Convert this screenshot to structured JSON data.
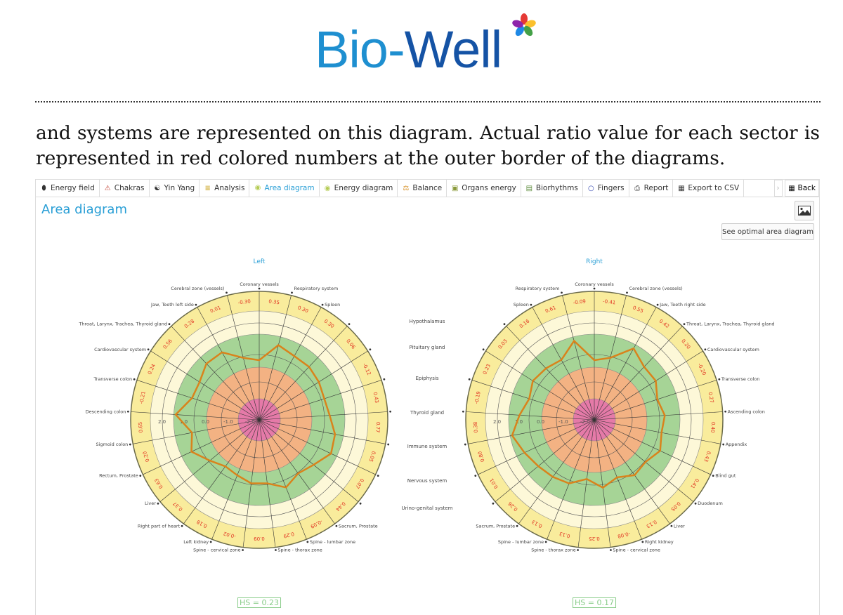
{
  "logo": {
    "text_a": "Bio-",
    "text_b": "Well"
  },
  "paragraph": {
    "line1": "and systems are represented on this diagram. Actual ratio value for each sector is",
    "line2": "represented in red colored numbers at the outer border of the diagrams."
  },
  "tabs": [
    {
      "label": "Energy field",
      "icon": "capsule-icon"
    },
    {
      "label": "Chakras",
      "icon": "triangle-icon"
    },
    {
      "label": "Yin Yang",
      "icon": "yin-yang-icon"
    },
    {
      "label": "Analysis",
      "icon": "bars-icon"
    },
    {
      "label": "Area diagram",
      "icon": "area-dot-icon",
      "active": true
    },
    {
      "label": "Energy diagram",
      "icon": "energy-dot-icon"
    },
    {
      "label": "Balance",
      "icon": "scales-icon"
    },
    {
      "label": "Organs energy",
      "icon": "organs-icon"
    },
    {
      "label": "Biorhythms",
      "icon": "chart-icon"
    },
    {
      "label": "Fingers",
      "icon": "circle-icon"
    },
    {
      "label": "Report",
      "icon": "printer-icon"
    },
    {
      "label": "Export to CSV",
      "icon": "csv-icon"
    }
  ],
  "back_label": "Back",
  "page_title": "Area diagram",
  "optimal_button": "See optimal area diagram",
  "middle_labels": [
    "Hypothalamus",
    "Pituitary gland",
    "Epiphysis",
    "Thyroid gland",
    "Immune system",
    "Nervous system",
    "Urino-genital system"
  ],
  "colors": {
    "accent": "#2a9fd6",
    "line": "#d9831c",
    "ratio": "#e03020",
    "outer": "#f9ec9c",
    "cream": "#fdf8d8",
    "green": "#a6d496",
    "orange": "#f3b283",
    "pink": "#e57aa8"
  },
  "chart_data": [
    {
      "type": "radar",
      "title": "Left",
      "axis_ticks": [
        "2.0",
        "1.0",
        "0.0",
        "-1.0",
        "-2.0"
      ],
      "hs": "HS = 0.23",
      "spoke_labels": [
        "Coronary vessels",
        "Respiratory system",
        "Spleen",
        "",
        "",
        "",
        "",
        "",
        "",
        "",
        "Sacrum, Prostate",
        "Spine - lumbar zone",
        "Spine - thorax zone",
        "Spine - cervical zone",
        "Left kidney",
        "Right part of heart",
        "Liver",
        "Rectum, Prostate",
        "Sigmoid colon",
        "Descending colon",
        "Transverse colon",
        "Cardiovascular system",
        "Throat, Larynx, Trachea, Thyroid gland",
        "Jaw, Teeth left side",
        "Cerebral zone (vessels)"
      ],
      "ratios": [
        "0.35",
        "0.30",
        "0.30",
        "0.06",
        "-0.12",
        "0.43",
        "0.77",
        "0.05",
        "0.07",
        "0.44",
        "-0.09",
        "0.29",
        "0.09",
        "-0.02",
        "0.18",
        "0.37",
        "0.63",
        "0.20",
        "0.65",
        "-0.21",
        "0.24",
        "0.56",
        "0.28",
        "0.01",
        "-0.30"
      ],
      "line_values": [
        0.0,
        0.8,
        0.6,
        0.6,
        0.5,
        0.4,
        0.5,
        0.8,
        0.9,
        0.5,
        0.3,
        0.6,
        0.2,
        0.2,
        0.0,
        -0.1,
        0.2,
        0.7,
        0.4,
        1.1,
        0.5,
        0.5,
        0.8,
        0.8,
        0.2
      ]
    },
    {
      "type": "radar",
      "title": "Right",
      "axis_ticks": [
        "2.0",
        "1.0",
        "0.0",
        "-1.0",
        "-2.0"
      ],
      "hs": "HS = 0.17",
      "spoke_labels": [
        "Coronary vessels",
        "Cerebral zone (vessels)",
        "Jaw, Teeth right side",
        "Throat, Larynx, Trachea, Thyroid gland",
        "Cardiovascular system",
        "Transverse colon",
        "Ascending colon",
        "Appendix",
        "Blind gut",
        "Duodenum",
        "Liver",
        "Right kidney",
        "Spine - cervical zone",
        "Spine - thorax zone",
        "Spine - lumbar zone",
        "Sacrum, Prostate",
        "",
        "",
        "",
        "",
        "",
        "",
        "",
        "Spleen",
        "Respiratory system"
      ],
      "ratios": [
        "-0.41",
        "0.55",
        "0.42",
        "0.20",
        "-0.20",
        "0.27",
        "0.40",
        "0.43",
        "0.41",
        "0.05",
        "0.13",
        "-0.08",
        "0.25",
        "0.13",
        "0.13",
        "0.26",
        "0.01",
        "0.80",
        "0.38",
        "-0.19",
        "0.23",
        "0.03",
        "0.16",
        "0.61",
        "-0.09"
      ],
      "line_values": [
        0.0,
        0.2,
        1.0,
        0.6,
        0.6,
        0.3,
        0.5,
        0.4,
        0.6,
        0.3,
        0.4,
        0.1,
        0.4,
        0.0,
        0.4,
        0.5,
        0.6,
        0.8,
        1.1,
        0.7,
        0.4,
        0.6,
        0.5,
        0.4,
        1.0
      ]
    }
  ]
}
